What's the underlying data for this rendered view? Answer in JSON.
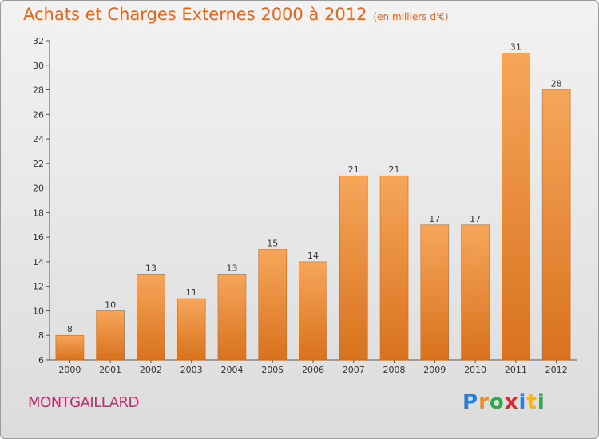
{
  "header": {
    "title": "Achats et Charges Externes 2000 à 2012",
    "subtitle": "(en milliers d'€)"
  },
  "commune": "MONTGAILLARD",
  "logo": {
    "text": "Proxiti",
    "letters": [
      {
        "ch": "P",
        "color": "#2a7fd4"
      },
      {
        "ch": "r",
        "color": "#f28c1e"
      },
      {
        "ch": "o",
        "color": "#2fa84f"
      },
      {
        "ch": "x",
        "color": "#e0262b"
      },
      {
        "ch": "i",
        "color": "#2a7fd4"
      },
      {
        "ch": "t",
        "color": "#f2b71e"
      },
      {
        "ch": "i",
        "color": "#2fa84f"
      }
    ]
  },
  "colors": {
    "bar_top": "#f6a65a",
    "bar_bottom": "#d8721e",
    "bar_edge": "#c86a18",
    "title": "#e2661c",
    "commune": "#c8286e"
  },
  "chart_data": {
    "type": "bar",
    "categories": [
      "2000",
      "2001",
      "2002",
      "2003",
      "2004",
      "2005",
      "2006",
      "2007",
      "2008",
      "2009",
      "2010",
      "2011",
      "2012"
    ],
    "values": [
      8,
      10,
      13,
      11,
      13,
      15,
      14,
      21,
      21,
      17,
      17,
      31,
      28
    ],
    "data_labels": [
      "8",
      "10",
      "13",
      "11",
      "13",
      "15",
      "14",
      "21",
      "21",
      "17",
      "17",
      "31",
      "28"
    ],
    "ylim": [
      6,
      32
    ],
    "yticks": [
      6,
      8,
      10,
      12,
      14,
      16,
      18,
      20,
      22,
      24,
      26,
      28,
      30,
      32
    ],
    "ytick_labels": [
      "6",
      "8",
      "10",
      "12",
      "14",
      "16",
      "18",
      "20",
      "22",
      "24",
      "26",
      "28",
      "30",
      "32"
    ],
    "grid": false,
    "title": "Achats et Charges Externes 2000 à 2012",
    "xlabel": "",
    "ylabel": ""
  }
}
